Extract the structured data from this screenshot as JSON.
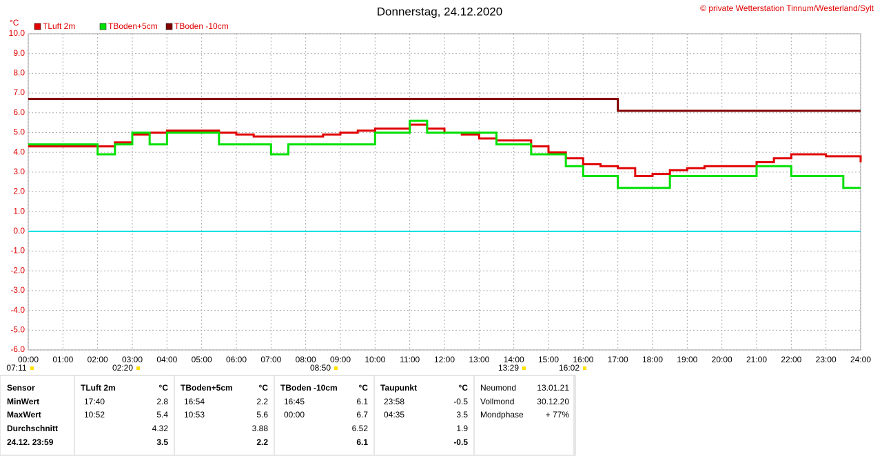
{
  "chart_data": {
    "type": "line",
    "title": "Donnerstag, 24.12.2020",
    "copyright": "© private Wetterstation Tinnum/Westerland/Sylt",
    "y_unit": "°C",
    "x": [
      0,
      0.5,
      1,
      1.5,
      2,
      2.5,
      3,
      3.5,
      4,
      4.5,
      5,
      5.5,
      6,
      6.5,
      7,
      7.5,
      8,
      8.5,
      9,
      9.5,
      10,
      10.5,
      11,
      11.5,
      12,
      12.5,
      13,
      13.5,
      14,
      14.5,
      15,
      15.5,
      16,
      16.5,
      17,
      17.5,
      18,
      18.5,
      19,
      19.5,
      20,
      20.5,
      21,
      21.5,
      22,
      22.5,
      23,
      23.5,
      24
    ],
    "series": [
      {
        "name": "TLuft 2m",
        "color": "#e00000",
        "values": [
          4.3,
          4.3,
          4.3,
          4.3,
          4.3,
          4.5,
          4.9,
          5.0,
          5.1,
          5.1,
          5.1,
          5.0,
          4.9,
          4.8,
          4.8,
          4.8,
          4.8,
          4.9,
          5.0,
          5.1,
          5.2,
          5.2,
          5.4,
          5.2,
          5.0,
          4.9,
          4.7,
          4.6,
          4.6,
          4.3,
          4.0,
          3.7,
          3.4,
          3.3,
          3.2,
          2.8,
          2.9,
          3.1,
          3.2,
          3.3,
          3.3,
          3.3,
          3.5,
          3.7,
          3.9,
          3.9,
          3.8,
          3.8,
          3.5
        ]
      },
      {
        "name": "TBoden+5cm",
        "color": "#00e000",
        "values": [
          4.4,
          4.4,
          4.4,
          4.4,
          3.9,
          4.4,
          5.0,
          4.4,
          5.0,
          5.0,
          5.0,
          4.4,
          4.4,
          4.4,
          3.9,
          4.4,
          4.4,
          4.4,
          4.4,
          4.4,
          5.0,
          5.0,
          5.6,
          5.0,
          5.0,
          5.0,
          5.0,
          4.4,
          4.4,
          3.9,
          3.9,
          3.3,
          2.8,
          2.8,
          2.2,
          2.2,
          2.2,
          2.8,
          2.8,
          2.8,
          2.8,
          2.8,
          3.3,
          3.3,
          2.8,
          2.8,
          2.8,
          2.2,
          2.2
        ]
      },
      {
        "name": "TBoden -10cm",
        "color": "#800000",
        "values": [
          6.7,
          6.7,
          6.7,
          6.7,
          6.7,
          6.7,
          6.7,
          6.7,
          6.7,
          6.7,
          6.7,
          6.7,
          6.7,
          6.7,
          6.7,
          6.7,
          6.7,
          6.7,
          6.7,
          6.7,
          6.7,
          6.7,
          6.7,
          6.7,
          6.7,
          6.7,
          6.7,
          6.7,
          6.7,
          6.7,
          6.7,
          6.7,
          6.7,
          6.7,
          6.1,
          6.1,
          6.1,
          6.1,
          6.1,
          6.1,
          6.1,
          6.1,
          6.1,
          6.1,
          6.1,
          6.1,
          6.1,
          6.1,
          6.1
        ]
      }
    ],
    "reference_line": {
      "value": 0,
      "color": "#00e0e0"
    },
    "xlim": [
      0,
      24
    ],
    "xticks": [
      {
        "value": 0,
        "label": "00:00"
      },
      {
        "value": 1,
        "label": "01:00"
      },
      {
        "value": 2,
        "label": "02:00"
      },
      {
        "value": 3,
        "label": "03:00"
      },
      {
        "value": 4,
        "label": "04:00"
      },
      {
        "value": 5,
        "label": "05:00"
      },
      {
        "value": 6,
        "label": "06:00"
      },
      {
        "value": 7,
        "label": "07:00"
      },
      {
        "value": 8,
        "label": "08:00"
      },
      {
        "value": 9,
        "label": "09:00"
      },
      {
        "value": 10,
        "label": "10:00"
      },
      {
        "value": 11,
        "label": "11:00"
      },
      {
        "value": 12,
        "label": "12:00"
      },
      {
        "value": 13,
        "label": "13:00"
      },
      {
        "value": 14,
        "label": "14:00"
      },
      {
        "value": 15,
        "label": "15:00"
      },
      {
        "value": 16,
        "label": "16:00"
      },
      {
        "value": 17,
        "label": "17:00"
      },
      {
        "value": 18,
        "label": "18:00"
      },
      {
        "value": 19,
        "label": "19:00"
      },
      {
        "value": 20,
        "label": "20:00"
      },
      {
        "value": 21,
        "label": "21:00"
      },
      {
        "value": 22,
        "label": "22:00"
      },
      {
        "value": 23,
        "label": "23:00"
      },
      {
        "value": 24,
        "label": "24:00"
      }
    ],
    "ylim": [
      -6,
      10
    ],
    "yticks": [
      {
        "value": 10,
        "label": "10.0"
      },
      {
        "value": 9,
        "label": "9.0"
      },
      {
        "value": 8,
        "label": "8.0"
      },
      {
        "value": 7,
        "label": "7.0"
      },
      {
        "value": 6,
        "label": "6.0"
      },
      {
        "value": 5,
        "label": "5.0"
      },
      {
        "value": 4,
        "label": "4.0"
      },
      {
        "value": 3,
        "label": "3.0"
      },
      {
        "value": 2,
        "label": "2.0"
      },
      {
        "value": 1,
        "label": "1.0"
      },
      {
        "value": 0,
        "label": "0.0"
      },
      {
        "value": -1,
        "label": "-1.0"
      },
      {
        "value": -2,
        "label": "-2.0"
      },
      {
        "value": -3,
        "label": "-3.0"
      },
      {
        "value": -4,
        "label": "-4.0"
      },
      {
        "value": -5,
        "label": "-5.0"
      },
      {
        "value": -6,
        "label": "-6.0"
      }
    ],
    "grid": true,
    "markers": [
      "07:11",
      "02:20",
      "08:50",
      "13:29",
      "16:02"
    ]
  },
  "table": {
    "row_labels": [
      "Sensor",
      "MinWert",
      "MaxWert",
      "Durchschnitt",
      "24.12. 23:59"
    ],
    "sensors": [
      {
        "name": "TLuft 2m",
        "unit": "°C",
        "min_time": "17:40",
        "min": 2.8,
        "max_time": "10:52",
        "max": 5.4,
        "avg": 4.32,
        "current": 3.5
      },
      {
        "name": "TBoden+5cm",
        "unit": "°C",
        "min_time": "16:54",
        "min": 2.2,
        "max_time": "10:53",
        "max": 5.6,
        "avg": 3.88,
        "current": 2.2
      },
      {
        "name": "TBoden -10cm",
        "unit": "°C",
        "min_time": "16:45",
        "min": 6.1,
        "max_time": "00:00",
        "max": 6.7,
        "avg": 6.52,
        "current": 6.1
      },
      {
        "name": "Taupunkt",
        "unit": "°C",
        "min_time": "23:58",
        "min": -0.5,
        "max_time": "04:35",
        "max": 3.5,
        "avg": 1.9,
        "current": -0.5
      }
    ],
    "moon": [
      {
        "label": "Neumond",
        "value": "13.01.21"
      },
      {
        "label": "Vollmond",
        "value": "30.12.20"
      },
      {
        "label": "Mondphase",
        "value": "+ 77%"
      }
    ]
  }
}
